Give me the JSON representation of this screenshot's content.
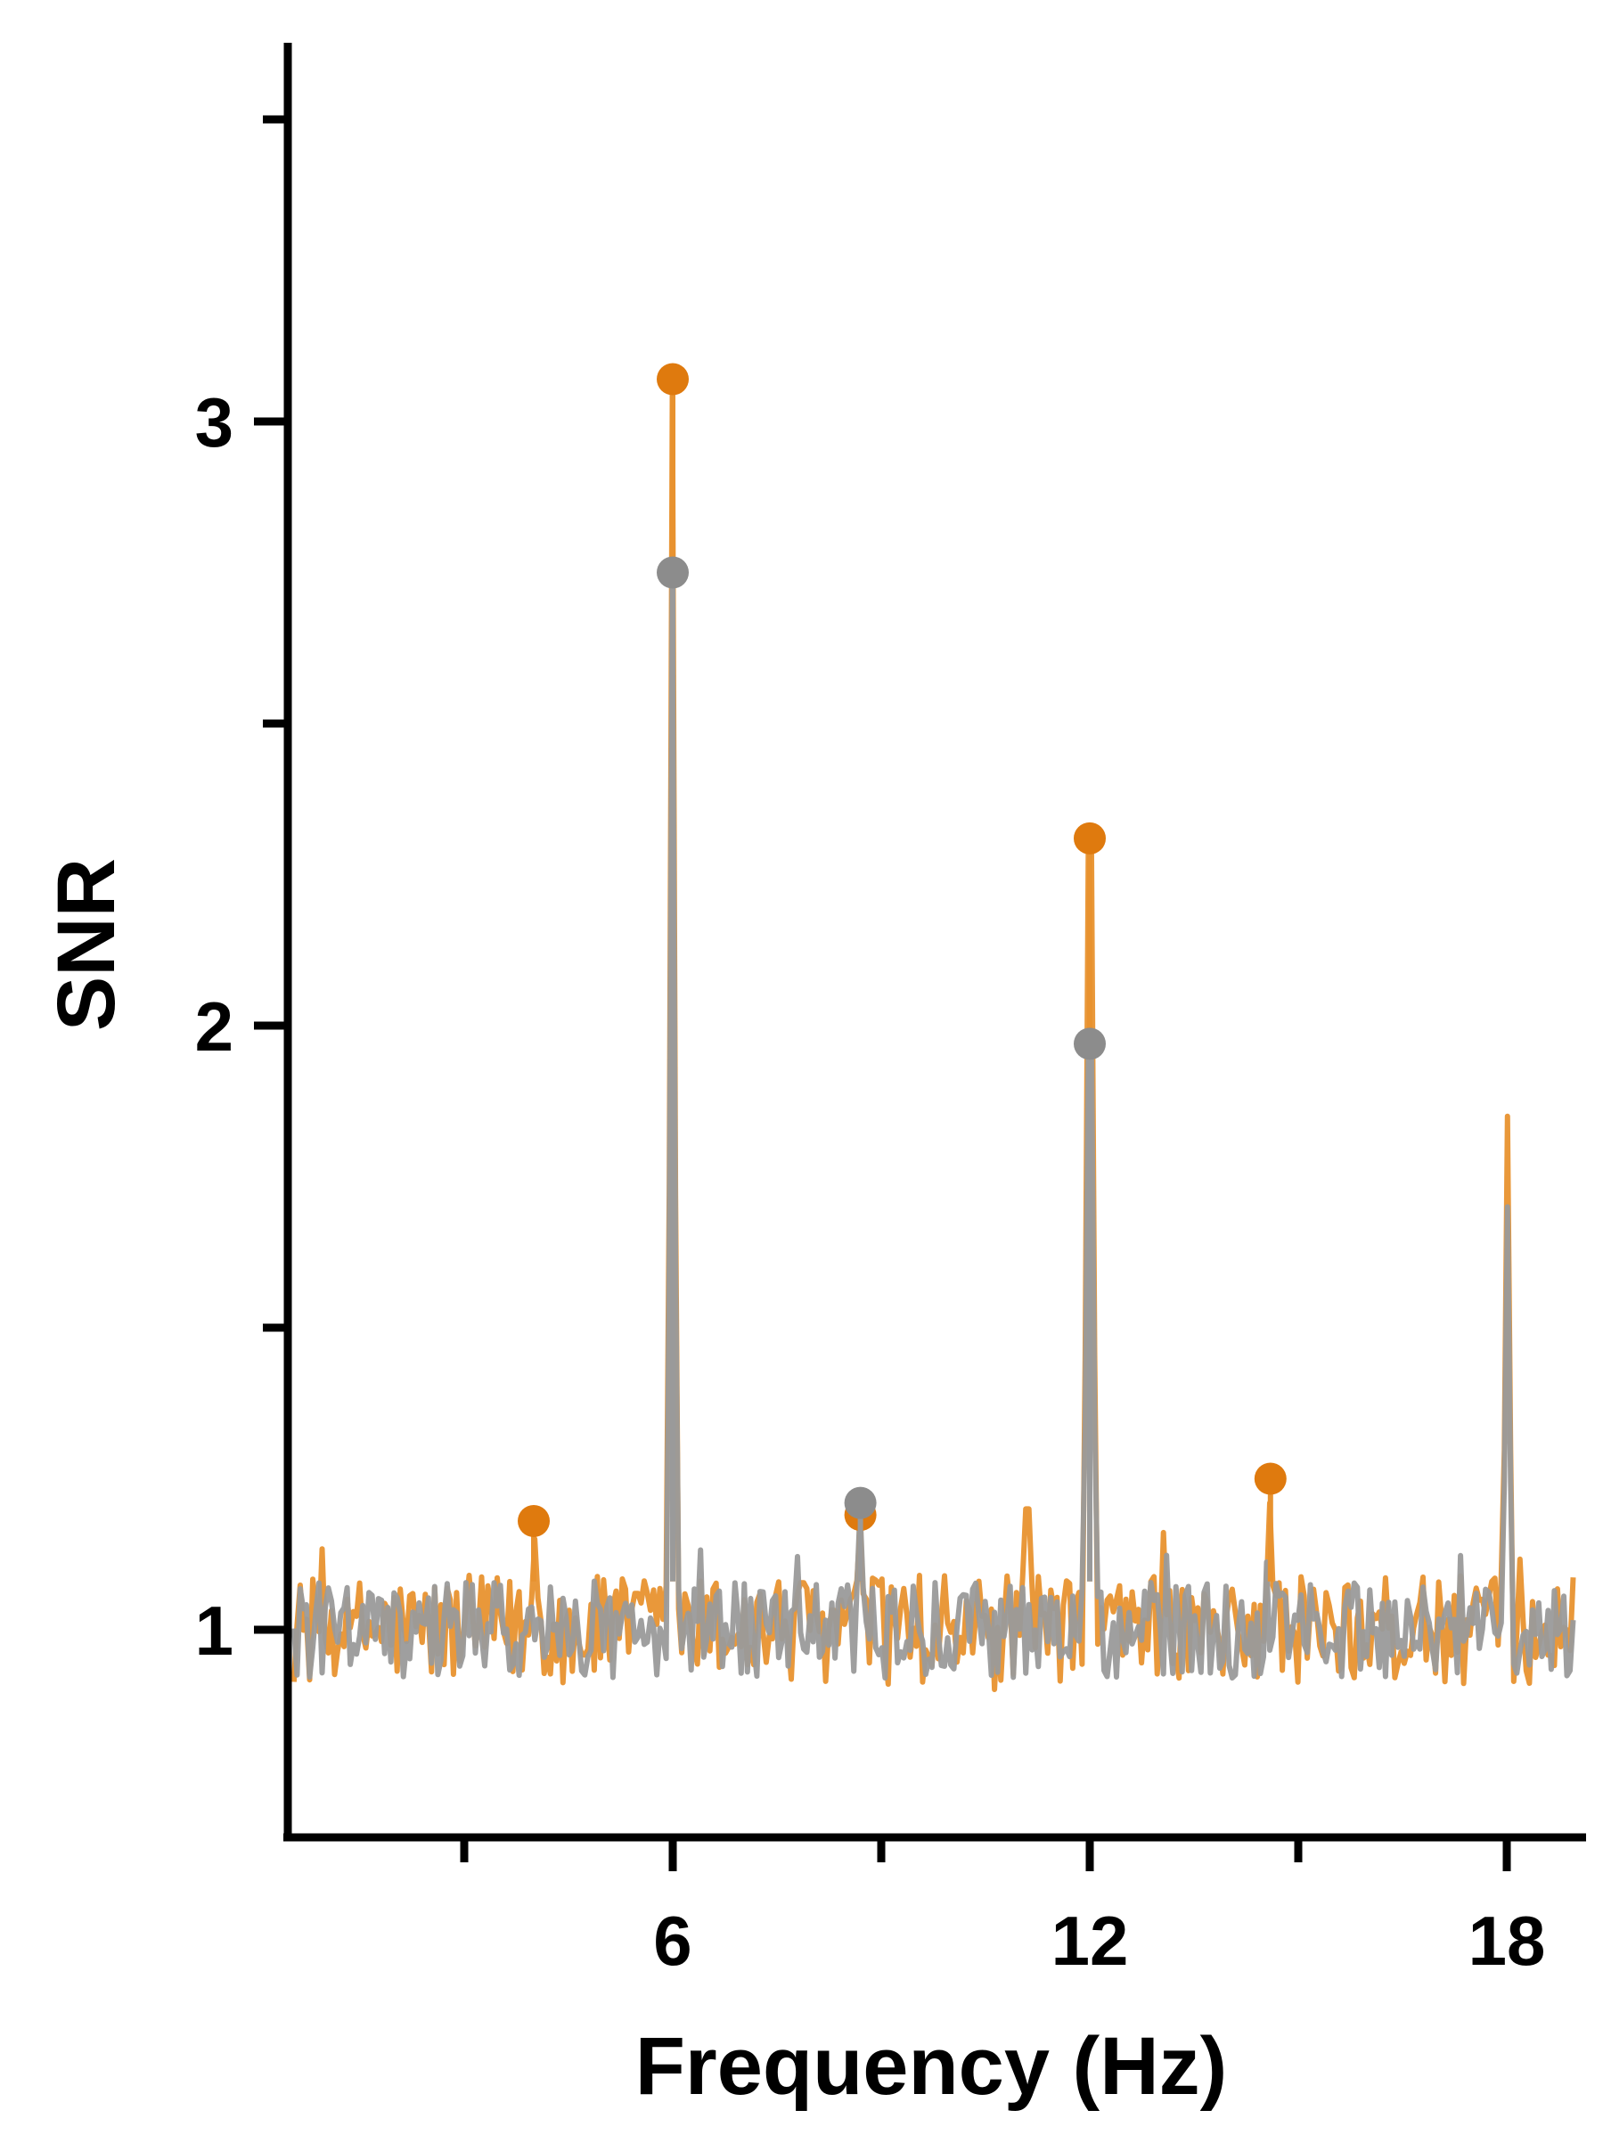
{
  "chart_data": {
    "type": "line",
    "xlabel": "Frequency (Hz)",
    "ylabel": "SNR",
    "xlim": [
      0.5,
      19.0
    ],
    "ylim": [
      0.65,
      3.65
    ],
    "x_ticks_major": [
      6,
      12,
      18
    ],
    "x_ticks_minor": [
      3,
      9,
      15
    ],
    "y_ticks_major": [
      1,
      2,
      3
    ],
    "y_ticks_minor": [
      1.5,
      2.5,
      3.5
    ],
    "grid": false,
    "legend": "none",
    "colors": {
      "orange": "#E8922F",
      "orange_marker": "#DF7A0E",
      "gray": "#9A9A9A",
      "gray_marker": "#8C8C8C"
    },
    "series": [
      {
        "color_key": "orange",
        "baseline": 1.0,
        "noise_amplitude": 0.09,
        "spikes": [
          [
            6.0,
            3.07
          ],
          [
            12.0,
            2.3
          ],
          [
            18.0,
            1.85
          ],
          [
            4.0,
            1.15
          ],
          [
            8.7,
            1.17
          ],
          [
            14.6,
            1.21
          ],
          [
            11.1,
            1.2
          ]
        ],
        "markers": [
          [
            4.0,
            1.18
          ],
          [
            6.0,
            3.07
          ],
          [
            8.7,
            1.19
          ],
          [
            12.0,
            2.31
          ],
          [
            14.6,
            1.25
          ]
        ]
      },
      {
        "color_key": "gray",
        "baseline": 1.0,
        "noise_amplitude": 0.08,
        "spikes": [
          [
            6.0,
            2.75
          ],
          [
            12.0,
            1.97
          ],
          [
            18.0,
            1.7
          ],
          [
            8.7,
            1.2
          ]
        ],
        "markers": [
          [
            8.7,
            1.21
          ],
          [
            6.0,
            2.75
          ],
          [
            12.0,
            1.97
          ]
        ]
      }
    ]
  }
}
